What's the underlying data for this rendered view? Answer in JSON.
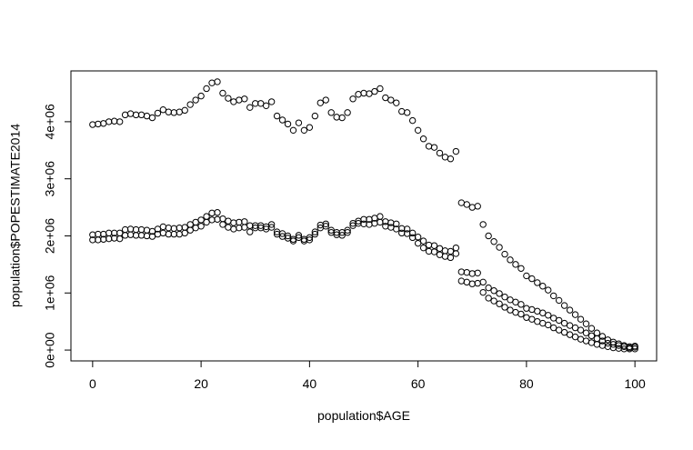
{
  "chart_data": {
    "type": "scatter",
    "x_label": "population$AGE",
    "y_label": "population$POPESTIMATE2014",
    "x": [
      0,
      1,
      2,
      3,
      4,
      5,
      6,
      7,
      8,
      9,
      10,
      11,
      12,
      13,
      14,
      15,
      16,
      17,
      18,
      19,
      20,
      21,
      22,
      23,
      24,
      25,
      26,
      27,
      28,
      29,
      30,
      31,
      32,
      33,
      34,
      35,
      36,
      37,
      38,
      39,
      40,
      41,
      42,
      43,
      44,
      45,
      46,
      47,
      48,
      49,
      50,
      51,
      52,
      53,
      54,
      55,
      56,
      57,
      58,
      59,
      60,
      61,
      62,
      63,
      64,
      65,
      66,
      67,
      68,
      69,
      70,
      71,
      72,
      73,
      74,
      75,
      76,
      77,
      78,
      79,
      80,
      81,
      82,
      83,
      84,
      85,
      86,
      87,
      88,
      89,
      90,
      91,
      92,
      93,
      94,
      95,
      96,
      97,
      98,
      99,
      100
    ],
    "series": [
      {
        "color": "#000000",
        "values": [
          3950000.0,
          3960000.0,
          3970000.0,
          4000000.0,
          4010000.0,
          4000000.0,
          4120000.0,
          4140000.0,
          4120000.0,
          4120000.0,
          4100000.0,
          4070000.0,
          4150000.0,
          4210000.0,
          4170000.0,
          4160000.0,
          4170000.0,
          4200000.0,
          4300000.0,
          4380000.0,
          4450000.0,
          4580000.0,
          4680000.0,
          4700000.0,
          4500000.0,
          4410000.0,
          4350000.0,
          4380000.0,
          4400000.0,
          4250000.0,
          4320000.0,
          4320000.0,
          4280000.0,
          4350000.0,
          4100000.0,
          4030000.0,
          3960000.0,
          3850000.0,
          3980000.0,
          3850000.0,
          3900000.0,
          4100000.0,
          4330000.0,
          4380000.0,
          4160000.0,
          4080000.0,
          4070000.0,
          4160000.0,
          4400000.0,
          4480000.0,
          4500000.0,
          4490000.0,
          4530000.0,
          4580000.0,
          4420000.0,
          4380000.0,
          4330000.0,
          4180000.0,
          4160000.0,
          4020000.0,
          3850000.0,
          3700000.0,
          3570000.0,
          3550000.0,
          3450000.0,
          3380000.0,
          3350000.0,
          3480000.0,
          2580000.0,
          2550000.0,
          2500000.0,
          2520000.0,
          2200000.0,
          2000000.0,
          1900000.0,
          1800000.0,
          1680000.0,
          1580000.0,
          1500000.0,
          1430000.0,
          1300000.0,
          1250000.0,
          1180000.0,
          1120000.0,
          1050000.0,
          950000.0,
          870000.0,
          780000.0,
          700000.0,
          620000.0,
          540000.0,
          460000.0,
          380000.0,
          300000.0,
          240000.0,
          180000.0,
          140000.0,
          110000.0,
          80000.0,
          60000.0,
          70000.0
        ]
      },
      {
        "color": "#000000",
        "values": [
          2020000.0,
          2030000.0,
          2030000.0,
          2050000.0,
          2050000.0,
          2050000.0,
          2110000.0,
          2120000.0,
          2110000.0,
          2110000.0,
          2100000.0,
          2080000.0,
          2120000.0,
          2160000.0,
          2140000.0,
          2130000.0,
          2140000.0,
          2150000.0,
          2200000.0,
          2240000.0,
          2280000.0,
          2340000.0,
          2400000.0,
          2410000.0,
          2300000.0,
          2260000.0,
          2230000.0,
          2240000.0,
          2250000.0,
          2180000.0,
          2180000.0,
          2180000.0,
          2160000.0,
          2200000.0,
          2070000.0,
          2040000.0,
          2000000.0,
          1940000.0,
          2010000.0,
          1940000.0,
          1970000.0,
          2070000.0,
          2190000.0,
          2210000.0,
          2100000.0,
          2060000.0,
          2060000.0,
          2100000.0,
          2220000.0,
          2260000.0,
          2210000.0,
          2200000.0,
          2220000.0,
          2240000.0,
          2170000.0,
          2150000.0,
          2120000.0,
          2050000.0,
          2040000.0,
          1970000.0,
          1870000.0,
          1790000.0,
          1730000.0,
          1720000.0,
          1670000.0,
          1640000.0,
          1620000.0,
          1690000.0,
          1210000.0,
          1190000.0,
          1160000.0,
          1170000.0,
          1010000.0,
          910000.0,
          860000.0,
          810000.0,
          750000.0,
          700000.0,
          660000.0,
          630000.0,
          570000.0,
          540000.0,
          500000.0,
          470000.0,
          440000.0,
          390000.0,
          350000.0,
          310000.0,
          270000.0,
          230000.0,
          190000.0,
          160000.0,
          130000.0,
          100000.0,
          80000.0,
          60000.0,
          40000.0,
          30000.0,
          20000.0,
          20000.0,
          20000.0
        ]
      },
      {
        "color": "#000000",
        "values": [
          1930000.0,
          1930000.0,
          1940000.0,
          1950000.0,
          1960000.0,
          1950000.0,
          2010000.0,
          2020000.0,
          2010000.0,
          2010000.0,
          2000000.0,
          1990000.0,
          2030000.0,
          2050000.0,
          2030000.0,
          2030000.0,
          2030000.0,
          2050000.0,
          2100000.0,
          2140000.0,
          2170000.0,
          2240000.0,
          2280000.0,
          2290000.0,
          2200000.0,
          2150000.0,
          2120000.0,
          2140000.0,
          2150000.0,
          2070000.0,
          2140000.0,
          2140000.0,
          2120000.0,
          2150000.0,
          2030000.0,
          1990000.0,
          1960000.0,
          1910000.0,
          1970000.0,
          1910000.0,
          1930000.0,
          2030000.0,
          2140000.0,
          2170000.0,
          2060000.0,
          2020000.0,
          2010000.0,
          2060000.0,
          2180000.0,
          2220000.0,
          2290000.0,
          2290000.0,
          2310000.0,
          2340000.0,
          2250000.0,
          2230000.0,
          2210000.0,
          2130000.0,
          2120000.0,
          2050000.0,
          1980000.0,
          1910000.0,
          1840000.0,
          1830000.0,
          1780000.0,
          1740000.0,
          1730000.0,
          1790000.0,
          1370000.0,
          1360000.0,
          1340000.0,
          1350000.0,
          1190000.0,
          1090000.0,
          1040000.0,
          990000.0,
          930000.0,
          880000.0,
          840000.0,
          800000.0,
          730000.0,
          710000.0,
          680000.0,
          650000.0,
          610000.0,
          560000.0,
          520000.0,
          470000.0,
          430000.0,
          390000.0,
          350000.0,
          300000.0,
          250000.0,
          200000.0,
          160000.0,
          120000.0,
          100000.0,
          80000.0,
          60000.0,
          40000.0,
          50000.0
        ]
      }
    ],
    "xlim": [
      -4,
      104
    ],
    "ylim": [
      -190000.0,
      4890000.0
    ],
    "xticks": [
      0,
      20,
      40,
      60,
      80,
      100
    ],
    "yticks": [
      {
        "value": 0,
        "label": "0e+00"
      },
      {
        "value": 1000000,
        "label": "1e+06"
      },
      {
        "value": 2000000,
        "label": "2e+06"
      },
      {
        "value": 3000000,
        "label": "3e+06"
      },
      {
        "value": 4000000,
        "label": "4e+06"
      }
    ]
  }
}
